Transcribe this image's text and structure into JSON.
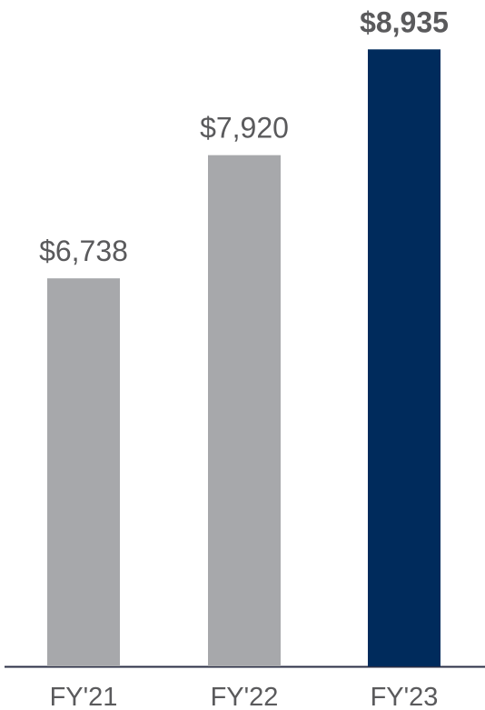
{
  "chart_data": {
    "type": "bar",
    "categories": [
      "FY'21",
      "FY'22",
      "FY'23"
    ],
    "values": [
      6738,
      7920,
      8935
    ],
    "value_labels": [
      "$6,738",
      "$7,920",
      "$8,935"
    ],
    "colors": [
      "#a7a8ab",
      "#a7a8ab",
      "#002b5c"
    ],
    "bold_labels": [
      false,
      false,
      true
    ],
    "ylim": [
      3015,
      9400
    ]
  }
}
